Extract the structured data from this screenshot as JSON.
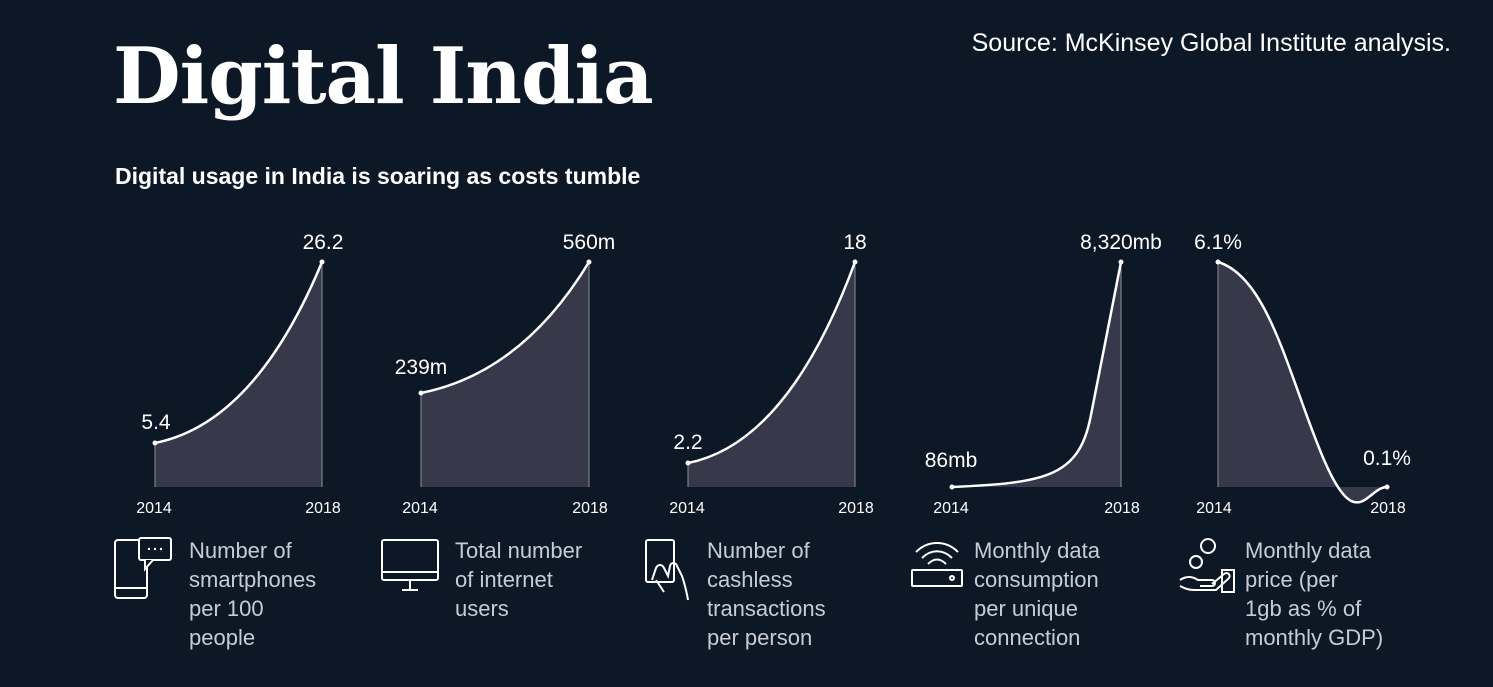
{
  "header": {
    "title": "Digital India",
    "subtitle": "Digital usage in India is soaring as costs tumble",
    "source": "Source: McKinsey Global Institute analysis."
  },
  "colors": {
    "background": "#0d1826",
    "area_fill": "#373849",
    "line": "#ffffff"
  },
  "chart_data": [
    {
      "type": "area",
      "x": [
        "2014",
        "2018"
      ],
      "values": [
        5.4,
        26.2
      ],
      "value_labels": [
        "5.4",
        "26.2"
      ],
      "curve": "convex",
      "description": "Number of\nsmartphones\nper 100\npeople",
      "icon": "smartphone-chat-icon"
    },
    {
      "type": "area",
      "x": [
        "2014",
        "2018"
      ],
      "values": [
        239,
        560
      ],
      "value_labels": [
        "239m",
        "560m"
      ],
      "curve": "convex",
      "description": "Total number\nof internet\nusers",
      "icon": "monitor-icon"
    },
    {
      "type": "area",
      "x": [
        "2014",
        "2018"
      ],
      "values": [
        2.2,
        18
      ],
      "value_labels": [
        "2.2",
        "18"
      ],
      "curve": "convex",
      "description": "Number of\ncashless\ntransactions\nper person",
      "icon": "hand-card-icon"
    },
    {
      "type": "area",
      "x": [
        "2014",
        "2018"
      ],
      "values": [
        86,
        8320
      ],
      "value_labels": [
        "86mb",
        "8,320mb"
      ],
      "curve": "exponential",
      "description": "Monthly data\nconsumption\nper unique\nconnection",
      "icon": "wifi-router-icon"
    },
    {
      "type": "area",
      "x": [
        "2014",
        "2018"
      ],
      "values": [
        6.1,
        0.1
      ],
      "value_labels": [
        "6.1%",
        "0.1%"
      ],
      "curve": "decline",
      "description": "Monthly data\nprice (per\n1gb as % of\nmonthly GDP)",
      "icon": "hand-coins-icon"
    }
  ]
}
